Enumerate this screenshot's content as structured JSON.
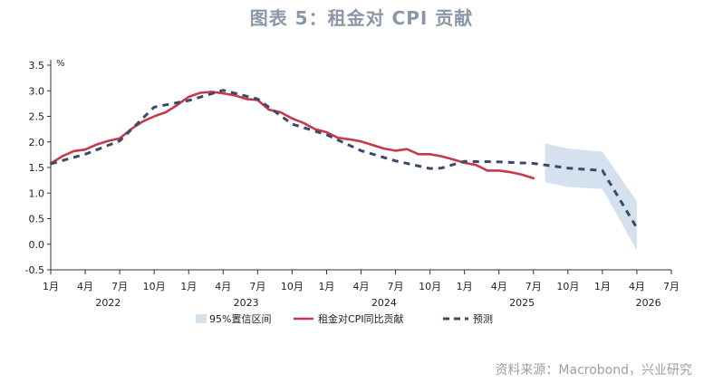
{
  "title": "图表 5：租金对 CPI 贡献",
  "source": "资料来源：Macrobond，兴业研究",
  "chart_data": {
    "type": "line",
    "unit_label": "%",
    "ylim": [
      -0.5,
      3.5
    ],
    "yticks": [
      "3.5",
      "3.0",
      "2.5",
      "2.0",
      "1.5",
      "1.0",
      "0.5",
      "0.0",
      "-0.5"
    ],
    "ytick_values": [
      3.5,
      3.0,
      2.5,
      2.0,
      1.5,
      1.0,
      0.5,
      0.0,
      -0.5
    ],
    "xlim": [
      "2022-01",
      "2026-07"
    ],
    "xtick_positions": [
      "2022-01",
      "2022-04",
      "2022-07",
      "2022-10",
      "2023-01",
      "2023-04",
      "2023-07",
      "2023-10",
      "2024-01",
      "2024-04",
      "2024-07",
      "2024-10",
      "2025-01",
      "2025-04",
      "2025-07",
      "2025-10",
      "2026-01",
      "2026-04",
      "2026-07"
    ],
    "xtick_labels": [
      "1月",
      "4月",
      "7月",
      "10月",
      "1月",
      "4月",
      "7月",
      "10月",
      "1月",
      "4月",
      "7月",
      "10月",
      "1月",
      "4月",
      "7月",
      "10月",
      "1月",
      "4月",
      "7月"
    ],
    "years": [
      {
        "label": "2022",
        "at": "2022-06"
      },
      {
        "label": "2023",
        "at": "2023-06"
      },
      {
        "label": "2024",
        "at": "2024-06"
      },
      {
        "label": "2025",
        "at": "2025-06"
      },
      {
        "label": "2026",
        "at": "2026-05"
      }
    ],
    "legend": [
      "95%置信区间",
      "租金对CPI同比贡献",
      "预测"
    ],
    "legend_position": "bottom",
    "grid": false,
    "series": [
      {
        "name": "租金对CPI同比贡献",
        "color": "#c8394b",
        "style": "solid",
        "x": [
          "2022-01",
          "2022-02",
          "2022-03",
          "2022-04",
          "2022-05",
          "2022-06",
          "2022-07",
          "2022-08",
          "2022-09",
          "2022-10",
          "2022-11",
          "2022-12",
          "2023-01",
          "2023-02",
          "2023-03",
          "2023-04",
          "2023-05",
          "2023-06",
          "2023-07",
          "2023-08",
          "2023-09",
          "2023-10",
          "2023-11",
          "2023-12",
          "2024-01",
          "2024-02",
          "2024-03",
          "2024-04",
          "2024-05",
          "2024-06",
          "2024-07",
          "2024-08",
          "2024-09",
          "2024-10",
          "2024-11",
          "2024-12",
          "2025-01",
          "2025-02",
          "2025-03",
          "2025-04",
          "2025-05",
          "2025-06",
          "2025-07"
        ],
        "y": [
          1.58,
          1.72,
          1.82,
          1.85,
          1.95,
          2.02,
          2.07,
          2.25,
          2.4,
          2.5,
          2.58,
          2.72,
          2.88,
          2.96,
          2.98,
          2.95,
          2.91,
          2.84,
          2.82,
          2.63,
          2.58,
          2.46,
          2.37,
          2.25,
          2.19,
          2.08,
          2.05,
          2.01,
          1.94,
          1.87,
          1.83,
          1.86,
          1.76,
          1.76,
          1.72,
          1.66,
          1.59,
          1.55,
          1.44,
          1.44,
          1.41,
          1.36,
          1.29
        ]
      },
      {
        "name": "预测",
        "color": "#3a4a6a",
        "style": "dashed",
        "x": [
          "2022-01",
          "2022-04",
          "2022-07",
          "2022-10",
          "2023-01",
          "2023-04",
          "2023-07",
          "2023-10",
          "2024-01",
          "2024-04",
          "2024-07",
          "2024-10",
          "2024-11",
          "2025-01",
          "2025-04",
          "2025-07",
          "2025-10",
          "2026-01",
          "2026-04"
        ],
        "y": [
          1.57,
          1.76,
          2.02,
          2.68,
          2.81,
          3.01,
          2.84,
          2.35,
          2.14,
          1.83,
          1.63,
          1.48,
          1.49,
          1.62,
          1.61,
          1.58,
          1.49,
          1.44,
          0.32
        ]
      }
    ],
    "confidence_band": {
      "name": "95%置信区间",
      "color": "#d6e1f0",
      "x": [
        "2025-08",
        "2025-10",
        "2026-01",
        "2026-04"
      ],
      "upper": [
        1.97,
        1.87,
        1.81,
        0.84
      ],
      "lower": [
        1.21,
        1.12,
        1.08,
        -0.12
      ]
    }
  }
}
